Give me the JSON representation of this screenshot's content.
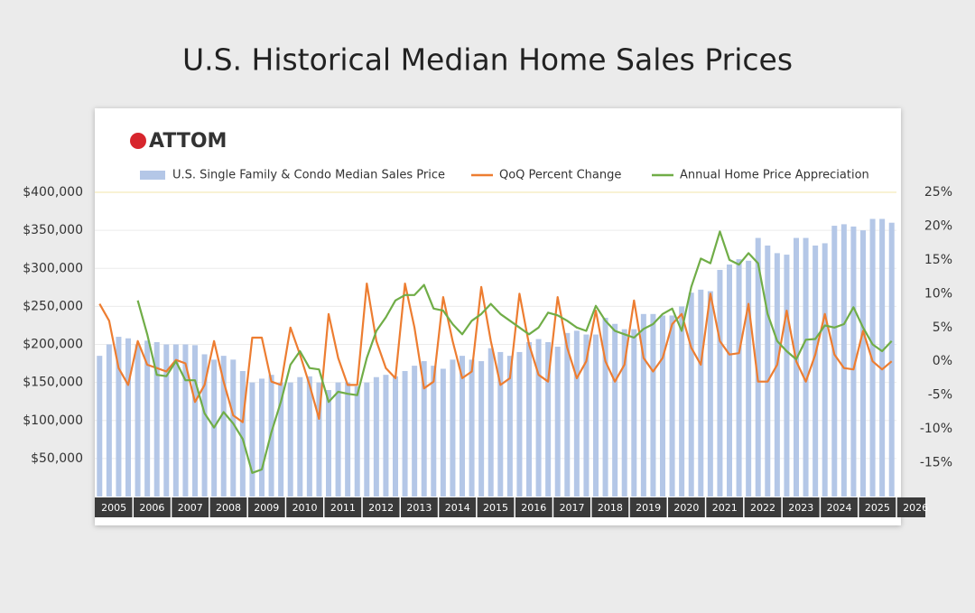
{
  "chart_data": {
    "type": "bar_line",
    "title": "U.S. Historical Median Home Sales Prices",
    "logo": "ATTOM",
    "year_labels": [
      "2005",
      "2006",
      "2007",
      "2008",
      "2009",
      "2010",
      "2011",
      "2012",
      "2013",
      "2014",
      "2015",
      "2016",
      "2017",
      "2018",
      "2019",
      "2020",
      "2021",
      "2022",
      "2023",
      "2024",
      "2025",
      "2026"
    ],
    "ylim": [
      0,
      400000
    ],
    "yticks": [
      {
        "value": 50000,
        "label": "$50,000"
      },
      {
        "value": 100000,
        "label": "$100,000"
      },
      {
        "value": 150000,
        "label": "$150,000"
      },
      {
        "value": 200000,
        "label": "$200,000"
      },
      {
        "value": 250000,
        "label": "$250,000"
      },
      {
        "value": 300000,
        "label": "$300,000"
      },
      {
        "value": 350000,
        "label": "$350,000"
      },
      {
        "value": 400000,
        "label": "$400,000"
      }
    ],
    "y2lim": [
      -20,
      25
    ],
    "y2ticks": [
      {
        "value": -15,
        "label": "-15%"
      },
      {
        "value": -10,
        "label": "-10%"
      },
      {
        "value": -5,
        "label": "-5%"
      },
      {
        "value": 0,
        "label": "0%"
      },
      {
        "value": 5,
        "label": "5%"
      },
      {
        "value": 10,
        "label": "10%"
      },
      {
        "value": 15,
        "label": "15%"
      },
      {
        "value": 20,
        "label": "20%"
      },
      {
        "value": 25,
        "label": "25%"
      }
    ],
    "grid": true,
    "series": [
      {
        "name": "U.S. Single Family & Condo Median Sales Price",
        "type": "bar",
        "color": "#b4c7e7",
        "values": [
          185000,
          200000,
          210000,
          208000,
          200000,
          205000,
          203000,
          200000,
          200000,
          200000,
          199000,
          187000,
          180000,
          185000,
          180000,
          165000,
          150000,
          155000,
          160000,
          150000,
          150000,
          157000,
          158000,
          150000,
          140000,
          150000,
          150000,
          145000,
          150000,
          157000,
          160000,
          158000,
          165000,
          172000,
          178000,
          172000,
          168000,
          180000,
          185000,
          180000,
          178000,
          195000,
          190000,
          185000,
          190000,
          203000,
          207000,
          203000,
          197000,
          215000,
          218000,
          213000,
          213000,
          235000,
          227000,
          220000,
          220000,
          240000,
          240000,
          238000,
          238000,
          250000,
          268000,
          272000,
          270000,
          298000,
          305000,
          312000,
          310000,
          340000,
          330000,
          320000,
          318000,
          340000,
          340000,
          330000,
          333000,
          356000,
          358000,
          355000,
          350000,
          365000,
          365000,
          360000
        ]
      },
      {
        "name": "QoQ Percent Change",
        "type": "line",
        "axis": "y2",
        "color": "#ed7d31",
        "values": [
          8.5,
          6,
          -1,
          -3.5,
          3,
          -0.5,
          -1,
          -1.5,
          0.2,
          -0.3,
          -6,
          -3.5,
          3,
          -3,
          -8,
          -9,
          3.5,
          3.5,
          -3,
          -3.5,
          5,
          1,
          -3.5,
          -8.5,
          7,
          0.5,
          -3.5,
          -3.5,
          11.5,
          3,
          -1,
          -2.5,
          11.5,
          5,
          -4,
          -3,
          9.5,
          3,
          -2.5,
          -1.5,
          11,
          3,
          -3.5,
          -2.5,
          10,
          2.5,
          -2,
          -3,
          9.5,
          2,
          -2.5,
          0,
          7.5,
          0,
          -3,
          -0.5,
          9,
          0.5,
          -1.5,
          0.5,
          5.5,
          7,
          2,
          -0.5,
          10,
          3,
          1,
          1.2,
          8.5,
          -3,
          -3,
          -0.5,
          7.5,
          0,
          -3,
          1,
          7,
          1,
          -1,
          -1.2,
          4.5,
          0,
          -1.2,
          0
        ]
      },
      {
        "name": "Annual Home Price Appreciation",
        "type": "line",
        "axis": "y2",
        "color": "#70ad47",
        "values": [
          null,
          null,
          null,
          null,
          9,
          4,
          -2,
          -2.2,
          0,
          -2.8,
          -2.8,
          -7.7,
          -9.8,
          -7.5,
          -9.2,
          -11.5,
          -16.5,
          -16,
          -10.5,
          -6,
          -0.5,
          1.5,
          -1,
          -1.2,
          -6,
          -4.5,
          -4.8,
          -5,
          0.5,
          4.5,
          6.5,
          9,
          9.8,
          9.8,
          11.3,
          7.8,
          7.5,
          5.5,
          4,
          6,
          7,
          8.5,
          7,
          6,
          5,
          4,
          5,
          7.2,
          6.8,
          6,
          5,
          4.5,
          8.2,
          6,
          4.5,
          4,
          3.5,
          4.8,
          5.5,
          7,
          7.8,
          4.5,
          11,
          15.2,
          14.5,
          19.2,
          15,
          14.3,
          16,
          14.5,
          7,
          3,
          1.5,
          0.3,
          3.2,
          3.3,
          5.3,
          5,
          5.5,
          8,
          5,
          2.5,
          1.5,
          3
        ]
      }
    ]
  }
}
